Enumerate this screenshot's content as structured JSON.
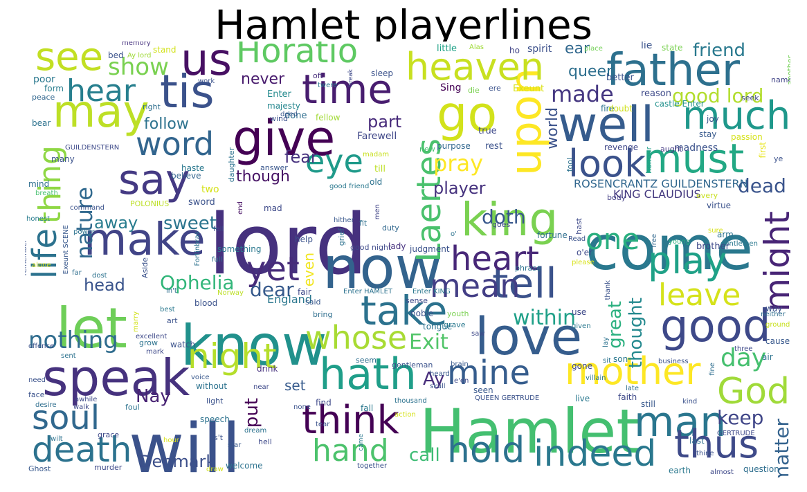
{
  "title": "Hamlet playerlines",
  "words": [
    {
      "text": "lord",
      "color": "#46317e"
    },
    {
      "text": "Hamlet",
      "color": "#44bf70"
    },
    {
      "text": "will",
      "color": "#3b528b"
    },
    {
      "text": "come",
      "color": "#2a788e"
    },
    {
      "text": "let",
      "color": "#6ece58"
    },
    {
      "text": "know",
      "color": "#21918c"
    },
    {
      "text": "now",
      "color": "#33638d"
    },
    {
      "text": "give",
      "color": "#440154"
    },
    {
      "text": "speak",
      "color": "#46327e"
    },
    {
      "text": "love",
      "color": "#365d8d"
    },
    {
      "text": "make",
      "color": "#414487"
    },
    {
      "text": "good",
      "color": "#3e4989"
    },
    {
      "text": "king",
      "color": "#7ad151"
    },
    {
      "text": "well",
      "color": "#365c8d"
    },
    {
      "text": "father",
      "color": "#2d708e"
    },
    {
      "text": "hath",
      "color": "#1f9e89"
    },
    {
      "text": "may",
      "color": "#bddf26"
    },
    {
      "text": "go",
      "color": "#d2e21b"
    },
    {
      "text": "tis",
      "color": "#3b528b"
    },
    {
      "text": "us",
      "color": "#471063"
    },
    {
      "text": "say",
      "color": "#443983"
    },
    {
      "text": "upon",
      "color": "#fde725"
    },
    {
      "text": "take",
      "color": "#2c728e"
    },
    {
      "text": "man",
      "color": "#2a768e"
    },
    {
      "text": "time",
      "color": "#481d6f"
    },
    {
      "text": "heaven",
      "color": "#c8e020"
    },
    {
      "text": "tell",
      "color": "#3b528b"
    },
    {
      "text": "must",
      "color": "#22a884"
    },
    {
      "text": "much",
      "color": "#1f988b"
    },
    {
      "text": "mother",
      "color": "#fde725"
    },
    {
      "text": "think",
      "color": "#440154"
    },
    {
      "text": "thus",
      "color": "#3e4a89"
    },
    {
      "text": "hold",
      "color": "#2c718e"
    },
    {
      "text": "indeed",
      "color": "#2a788e"
    },
    {
      "text": "God",
      "color": "#a0da39"
    },
    {
      "text": "see",
      "color": "#c2df23"
    },
    {
      "text": "Horatio",
      "color": "#5ec962"
    },
    {
      "text": "night",
      "color": "#b5de2b"
    },
    {
      "text": "look",
      "color": "#3b528b"
    },
    {
      "text": "whose",
      "color": "#a8db34"
    },
    {
      "text": "mine",
      "color": "#365d8d"
    },
    {
      "text": "soul",
      "color": "#31688e"
    },
    {
      "text": "death",
      "color": "#2c728e"
    },
    {
      "text": "play",
      "color": "#1fa187"
    },
    {
      "text": "might",
      "color": "#482576"
    },
    {
      "text": "Laertes",
      "color": "#4ac16d"
    },
    {
      "text": "life",
      "color": "#2c728e"
    },
    {
      "text": "eye",
      "color": "#1f9a8a"
    },
    {
      "text": "heart",
      "color": "#482878"
    },
    {
      "text": "yet",
      "color": "#472c7a"
    },
    {
      "text": "mean",
      "color": "#433e85"
    },
    {
      "text": "one",
      "color": "#29af7f"
    },
    {
      "text": "leave",
      "color": "#d5e21a"
    },
    {
      "text": "hand",
      "color": "#4cc26c"
    },
    {
      "text": "word",
      "color": "#32658e"
    },
    {
      "text": "hear",
      "color": "#277f8e"
    },
    {
      "text": "thing",
      "color": "#8fd744"
    },
    {
      "text": "nothing",
      "color": "#2f6c8e"
    },
    {
      "text": "day",
      "color": "#46c06f"
    },
    {
      "text": "Exit",
      "color": "#52c569"
    },
    {
      "text": "show",
      "color": "#7ad151"
    },
    {
      "text": "made",
      "color": "#453781"
    },
    {
      "text": "good lord",
      "color": "#b2dd2d"
    },
    {
      "text": "friend",
      "color": "#29798e"
    },
    {
      "text": "dead",
      "color": "#3a548c"
    },
    {
      "text": "pray",
      "color": "#fde725"
    },
    {
      "text": "nature",
      "color": "#30698e"
    },
    {
      "text": "sweet",
      "color": "#2b758e"
    },
    {
      "text": "within",
      "color": "#1fa088"
    },
    {
      "text": "Ophelia",
      "color": "#32b67a"
    },
    {
      "text": "thought",
      "color": "#23898e"
    },
    {
      "text": "great",
      "color": "#2ab07f"
    },
    {
      "text": "keep",
      "color": "#404688"
    },
    {
      "text": "matter",
      "color": "#33628d"
    },
    {
      "text": "Denmark",
      "color": "#3c4f8a"
    },
    {
      "text": "call",
      "color": "#3dbc74"
    },
    {
      "text": "Ay",
      "color": "#472d7b"
    },
    {
      "text": "Nay",
      "color": "#482374"
    },
    {
      "text": "put",
      "color": "#440154"
    },
    {
      "text": "head",
      "color": "#3a548c"
    },
    {
      "text": "dear",
      "color": "#375a8c"
    },
    {
      "text": "player",
      "color": "#46327e"
    },
    {
      "text": "doth",
      "color": "#38578c"
    },
    {
      "text": "though",
      "color": "#471365"
    },
    {
      "text": "fear",
      "color": "#46317e"
    },
    {
      "text": "away",
      "color": "#287c8e"
    },
    {
      "text": "never",
      "color": "#481b6d"
    },
    {
      "text": "follow",
      "color": "#2c728e"
    },
    {
      "text": "part",
      "color": "#472a7a"
    },
    {
      "text": "ear",
      "color": "#31688e"
    },
    {
      "text": "queen",
      "color": "#2e6f8e"
    },
    {
      "text": "world",
      "color": "#3b528b"
    },
    {
      "text": "even",
      "color": "#f1e51d"
    },
    {
      "text": "ROSENCRANTZ GUILDENSTERN",
      "color": "#31678e"
    },
    {
      "text": "KING CLAUDIUS",
      "color": "#44397f"
    },
    {
      "text": "England",
      "color": "#2a778e"
    },
    {
      "text": "set",
      "color": "#375b8d"
    },
    {
      "text": "Farewell",
      "color": "#3f4788"
    },
    {
      "text": "Enter",
      "color": "#238a8d"
    },
    {
      "text": "majesty",
      "color": "#24868e"
    },
    {
      "text": "done",
      "color": "#2e6e8e"
    },
    {
      "text": "fellow",
      "color": "#a2da37"
    },
    {
      "text": "Sing",
      "color": "#440154"
    },
    {
      "text": "true",
      "color": "#3e4989"
    },
    {
      "text": "purpose",
      "color": "#31678e"
    },
    {
      "text": "rest",
      "color": "#3b528b"
    },
    {
      "text": "spirit",
      "color": "#3c508b"
    },
    {
      "text": "little",
      "color": "#1fa187"
    },
    {
      "text": "lie",
      "color": "#3a538b"
    },
    {
      "text": "state",
      "color": "#7ad151"
    },
    {
      "text": "Exeunt",
      "color": "#d8e219"
    },
    {
      "text": "reason",
      "color": "#3e4a89"
    },
    {
      "text": "better",
      "color": "#3b528b"
    },
    {
      "text": "fire",
      "color": "#2c738e"
    },
    {
      "text": "doubt",
      "color": "#d0e11c"
    },
    {
      "text": "castle Enter",
      "color": "#21918c"
    },
    {
      "text": "madness",
      "color": "#3b528b"
    },
    {
      "text": "revenge",
      "color": "#3f4788"
    },
    {
      "text": "stay",
      "color": "#37598c"
    },
    {
      "text": "passion",
      "color": "#d5e21a"
    },
    {
      "text": "joy",
      "color": "#3a548c"
    },
    {
      "text": "first",
      "color": "#e7e419"
    },
    {
      "text": "ye",
      "color": "#3b518b"
    },
    {
      "text": "seek",
      "color": "#3f4889"
    },
    {
      "text": "name",
      "color": "#414487"
    },
    {
      "text": "another",
      "color": "#73d056"
    },
    {
      "text": "fool",
      "color": "#2c728e"
    },
    {
      "text": "honour",
      "color": "#1f9f88"
    },
    {
      "text": "aught",
      "color": "#443a83"
    },
    {
      "text": "memory",
      "color": "#46327e"
    },
    {
      "text": "stand",
      "color": "#d2e21b"
    },
    {
      "text": "bed",
      "color": "#3b528b"
    },
    {
      "text": "Ay lord",
      "color": "#a0da39"
    },
    {
      "text": "poor",
      "color": "#2a788e"
    },
    {
      "text": "form",
      "color": "#287d8e"
    },
    {
      "text": "peace",
      "color": "#31668e"
    },
    {
      "text": "bear",
      "color": "#2c728e"
    },
    {
      "text": "right",
      "color": "#2e6e8e"
    },
    {
      "text": "sleep",
      "color": "#3b528b"
    },
    {
      "text": "oft",
      "color": "#472d7b"
    },
    {
      "text": "break",
      "color": "#3e4989"
    },
    {
      "text": "twere",
      "color": "#2a788e"
    },
    {
      "text": "deed",
      "color": "#38588c"
    },
    {
      "text": "wind",
      "color": "#3b518b"
    },
    {
      "text": "ho",
      "color": "#414487"
    },
    {
      "text": "Alas",
      "color": "#a0da39"
    },
    {
      "text": "place",
      "color": "#73d056"
    },
    {
      "text": "die",
      "color": "#7ad151"
    },
    {
      "text": "ere",
      "color": "#3b528b"
    },
    {
      "text": "daughter",
      "color": "#2c728e"
    },
    {
      "text": "madam",
      "color": "#c8e020"
    },
    {
      "text": "new",
      "color": "#46c06f"
    },
    {
      "text": "GUILDENSTERN",
      "color": "#3e4a89"
    },
    {
      "text": "believe",
      "color": "#32658e"
    },
    {
      "text": "many",
      "color": "#3b528b"
    },
    {
      "text": "haste",
      "color": "#2a788e"
    },
    {
      "text": "answer",
      "color": "#39568c"
    },
    {
      "text": "till",
      "color": "#bddf26"
    },
    {
      "text": "mind",
      "color": "#2e6e8e"
    },
    {
      "text": "breath",
      "color": "#46c06f"
    },
    {
      "text": "command",
      "color": "#3b528b"
    },
    {
      "text": "honest",
      "color": "#287c8e"
    },
    {
      "text": "two",
      "color": "#d5e21a"
    },
    {
      "text": "POLONIUS",
      "color": "#bddf26"
    },
    {
      "text": "sword",
      "color": "#3b528b"
    },
    {
      "text": "mad",
      "color": "#3e4a89"
    },
    {
      "text": "good friend",
      "color": "#2a788e"
    },
    {
      "text": "old",
      "color": "#2c718e"
    },
    {
      "text": "hither",
      "color": "#38588c"
    },
    {
      "text": "fit",
      "color": "#2e6f8e"
    },
    {
      "text": "men",
      "color": "#414487"
    },
    {
      "text": "duty",
      "color": "#31688e"
    },
    {
      "text": "goes",
      "color": "#3e4989"
    },
    {
      "text": "body",
      "color": "#433e85"
    },
    {
      "text": "every",
      "color": "#c8e020"
    },
    {
      "text": "virtue",
      "color": "#3b528b"
    },
    {
      "text": "fortune",
      "color": "#2e6e8e"
    },
    {
      "text": "hast",
      "color": "#3e4989"
    },
    {
      "text": "arm",
      "color": "#2c728e"
    },
    {
      "text": "Read",
      "color": "#3b528b"
    },
    {
      "text": "young",
      "color": "#29af7f"
    },
    {
      "text": "free",
      "color": "#31688e"
    },
    {
      "text": "sure",
      "color": "#d8e219"
    },
    {
      "text": "gentlemen",
      "color": "#2a788e"
    },
    {
      "text": "brother",
      "color": "#3e4989"
    },
    {
      "text": "remember",
      "color": "#3b528b"
    },
    {
      "text": "Exeunt SCENE",
      "color": "#38588c"
    },
    {
      "text": "power",
      "color": "#2c728e"
    },
    {
      "text": "fell",
      "color": "#3e4989"
    },
    {
      "text": "end",
      "color": "#471063"
    },
    {
      "text": "something",
      "color": "#2a788e"
    },
    {
      "text": "Fortinbras",
      "color": "#2c728e"
    },
    {
      "text": "full",
      "color": "#2e6e8e"
    },
    {
      "text": "help",
      "color": "#3b528b"
    },
    {
      "text": "grief",
      "color": "#2c718e"
    },
    {
      "text": "good night",
      "color": "#3e4a89"
    },
    {
      "text": "lady",
      "color": "#46317e"
    },
    {
      "text": "judgment",
      "color": "#3b528b"
    },
    {
      "text": "alone",
      "color": "#d5e21a"
    },
    {
      "text": "far",
      "color": "#2e6e8e"
    },
    {
      "text": "dost",
      "color": "#2c728e"
    },
    {
      "text": "Aside",
      "color": "#3b528b"
    },
    {
      "text": "o'er",
      "color": "#3e4989"
    },
    {
      "text": "please",
      "color": "#d8e219"
    },
    {
      "text": "phrase",
      "color": "#2c728e"
    },
    {
      "text": "thank",
      "color": "#3b528b"
    },
    {
      "text": "Enter KING",
      "color": "#2a788e"
    },
    {
      "text": "Enter HAMLET",
      "color": "#2c728e"
    },
    {
      "text": "sense",
      "color": "#3e4989"
    },
    {
      "text": "in't",
      "color": "#2e6e8e"
    },
    {
      "text": "Norway",
      "color": "#bddf26"
    },
    {
      "text": "blood",
      "color": "#3b528b"
    },
    {
      "text": "said",
      "color": "#38588c"
    },
    {
      "text": "fair",
      "color": "#3e4989"
    },
    {
      "text": "bring",
      "color": "#2e6e8e"
    },
    {
      "text": "noble",
      "color": "#3b528b"
    },
    {
      "text": "youth",
      "color": "#7ad151"
    },
    {
      "text": "tongue",
      "color": "#2c728e"
    },
    {
      "text": "use",
      "color": "#3e4989"
    },
    {
      "text": "given",
      "color": "#2a788e"
    },
    {
      "text": "way",
      "color": "#3b528b"
    },
    {
      "text": "neither",
      "color": "#2e6e8e"
    },
    {
      "text": "ground",
      "color": "#c8e020"
    },
    {
      "text": "best",
      "color": "#2a788e"
    },
    {
      "text": "marry",
      "color": "#d2e21b"
    },
    {
      "text": "art",
      "color": "#3b528b"
    },
    {
      "text": "grow",
      "color": "#2c728e"
    },
    {
      "text": "excellent",
      "color": "#3e4989"
    },
    {
      "text": "watch",
      "color": "#3b528b"
    },
    {
      "text": "grave",
      "color": "#2a788e"
    },
    {
      "text": "saw",
      "color": "#3e4989"
    },
    {
      "text": "lay",
      "color": "#2c728e"
    },
    {
      "text": "cause",
      "color": "#38588c"
    },
    {
      "text": "offence",
      "color": "#3b528b"
    },
    {
      "text": "sent",
      "color": "#2c728e"
    },
    {
      "text": "mark",
      "color": "#3e4989"
    },
    {
      "text": "seem",
      "color": "#2e6e8e"
    },
    {
      "text": "gentleman",
      "color": "#3b528b"
    },
    {
      "text": "brain",
      "color": "#38588c"
    },
    {
      "text": "gone",
      "color": "#3e4989"
    },
    {
      "text": "sit",
      "color": "#2c728e"
    },
    {
      "text": "business",
      "color": "#3b528b"
    },
    {
      "text": "son",
      "color": "#2a788e"
    },
    {
      "text": "three",
      "color": "#3e4989"
    },
    {
      "text": "air",
      "color": "#2c728e"
    },
    {
      "text": "fine",
      "color": "#2e6e8e"
    },
    {
      "text": "need",
      "color": "#3b528b"
    },
    {
      "text": "voice",
      "color": "#38588c"
    },
    {
      "text": "near",
      "color": "#3e4989"
    },
    {
      "text": "without",
      "color": "#2c728e"
    },
    {
      "text": "drink",
      "color": "#46317e"
    },
    {
      "text": "villain",
      "color": "#2a788e"
    },
    {
      "text": "face",
      "color": "#3b528b"
    },
    {
      "text": "desire",
      "color": "#2e6e8e"
    },
    {
      "text": "awhile",
      "color": "#3e4989"
    },
    {
      "text": "foul",
      "color": "#2c728e"
    },
    {
      "text": "light",
      "color": "#3b528b"
    },
    {
      "text": "seen",
      "color": "#38588c"
    },
    {
      "text": "find",
      "color": "#3e4989"
    },
    {
      "text": "thousand",
      "color": "#2c728e"
    },
    {
      "text": "QUEEN GERTRUDE",
      "color": "#3b528b"
    },
    {
      "text": "live",
      "color": "#2a788e"
    },
    {
      "text": "faith",
      "color": "#3e4989"
    },
    {
      "text": "late",
      "color": "#2e6e8e"
    },
    {
      "text": "kind",
      "color": "#3b528b"
    },
    {
      "text": "still",
      "color": "#38588c"
    },
    {
      "text": "walk",
      "color": "#3e4989"
    },
    {
      "text": "speech",
      "color": "#2c728e"
    },
    {
      "text": "none",
      "color": "#3b528b"
    },
    {
      "text": "fall",
      "color": "#2a788e"
    },
    {
      "text": "action",
      "color": "#d5e21a"
    },
    {
      "text": "grace",
      "color": "#3e4989"
    },
    {
      "text": "wilt",
      "color": "#2c728e"
    },
    {
      "text": "hour",
      "color": "#d8e219"
    },
    {
      "text": "is't",
      "color": "#3b528b"
    },
    {
      "text": "star",
      "color": "#38588c"
    },
    {
      "text": "hell",
      "color": "#3e4989"
    },
    {
      "text": "dream",
      "color": "#2c728e"
    },
    {
      "text": "tear",
      "color": "#3b528b"
    },
    {
      "text": "came",
      "color": "#2a788e"
    },
    {
      "text": "GERTRUDE",
      "color": "#3e4989"
    },
    {
      "text": "last",
      "color": "#2e6e8e"
    },
    {
      "text": "thine",
      "color": "#3b528b"
    },
    {
      "text": "Ghost",
      "color": "#38588c"
    },
    {
      "text": "murder",
      "color": "#3e4989"
    },
    {
      "text": "draw",
      "color": "#d2e21b"
    },
    {
      "text": "welcome",
      "color": "#2c728e"
    },
    {
      "text": "together",
      "color": "#3b528b"
    },
    {
      "text": "earth",
      "color": "#2a788e"
    },
    {
      "text": "almost",
      "color": "#3e4989"
    },
    {
      "text": "question",
      "color": "#2e6e8e"
    },
    {
      "text": "skull",
      "color": "#3b528b"
    },
    {
      "text": "heard",
      "color": "#38588c"
    },
    {
      "text": "e'en",
      "color": "#3e4989"
    },
    {
      "text": "o'",
      "color": "#2c728e"
    },
    {
      "text": "work",
      "color": "#3b528b"
    }
  ]
}
